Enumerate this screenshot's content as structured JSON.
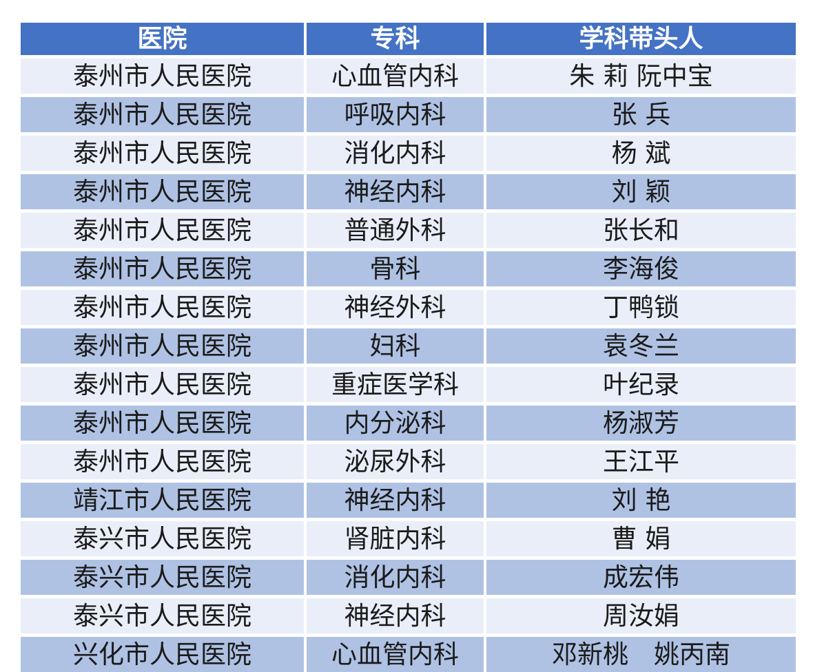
{
  "colors": {
    "header_bg": "#4472C4",
    "header_text": "#FFFFFF",
    "row_light": "#EAEEF8",
    "row_medium": "#AFC2E4",
    "body_text": "#1B1B1B",
    "grid": "#FFFFFF"
  },
  "table": {
    "columns": [
      {
        "label": "医院"
      },
      {
        "label": "专科"
      },
      {
        "label": "学科带头人"
      }
    ],
    "rows": [
      {
        "hospital": "泰州市人民医院",
        "specialty": "心血管内科",
        "leader": "朱 莉 阮中宝"
      },
      {
        "hospital": "泰州市人民医院",
        "specialty": "呼吸内科",
        "leader": "张 兵"
      },
      {
        "hospital": "泰州市人民医院",
        "specialty": "消化内科",
        "leader": "杨 斌"
      },
      {
        "hospital": "泰州市人民医院",
        "specialty": "神经内科",
        "leader": "刘 颖"
      },
      {
        "hospital": "泰州市人民医院",
        "specialty": "普通外科",
        "leader": "张长和"
      },
      {
        "hospital": "泰州市人民医院",
        "specialty": "骨科",
        "leader": "李海俊"
      },
      {
        "hospital": "泰州市人民医院",
        "specialty": "神经外科",
        "leader": "丁鸭锁"
      },
      {
        "hospital": "泰州市人民医院",
        "specialty": "妇科",
        "leader": "袁冬兰"
      },
      {
        "hospital": "泰州市人民医院",
        "specialty": "重症医学科",
        "leader": "叶纪录"
      },
      {
        "hospital": "泰州市人民医院",
        "specialty": "内分泌科",
        "leader": "杨淑芳"
      },
      {
        "hospital": "泰州市人民医院",
        "specialty": "泌尿外科",
        "leader": "王江平"
      },
      {
        "hospital": "靖江市人民医院",
        "specialty": "神经内科",
        "leader": "刘 艳"
      },
      {
        "hospital": "泰兴市人民医院",
        "specialty": "肾脏内科",
        "leader": "曹 娟"
      },
      {
        "hospital": "泰兴市人民医院",
        "specialty": "消化内科",
        "leader": "成宏伟"
      },
      {
        "hospital": "泰兴市人民医院",
        "specialty": "神经内科",
        "leader": "周汝娟"
      },
      {
        "hospital": "兴化市人民医院",
        "specialty": "心血管内科",
        "leader": "邓新桃　姚丙南"
      }
    ]
  }
}
